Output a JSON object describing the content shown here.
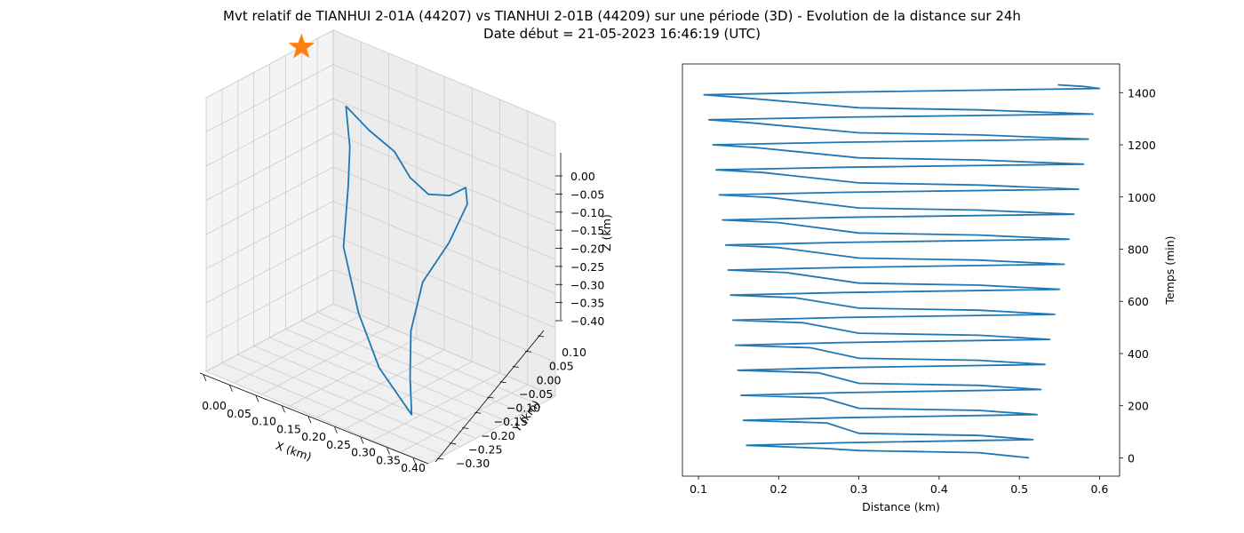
{
  "title": "Mvt relatif de TIANHUI 2-01A (44207) vs TIANHUI 2-01B (44209) sur une période (3D) - Evolution de la distance sur 24h",
  "subtitle": "Date début = 21-05-2023 16:46:19 (UTC)",
  "colors": {
    "series": "#1f77b4",
    "marker": "#ff7f0e",
    "pane": "#f2f2f2",
    "grid": "#cccccc"
  },
  "chart_data": [
    {
      "type": "line3d",
      "xlabel": "X (km)",
      "ylabel": "Y (km)",
      "zlabel": "Z (km)",
      "x_ticks": [
        "0.00",
        "0.05",
        "0.10",
        "0.15",
        "0.20",
        "0.25",
        "0.30",
        "0.35",
        "0.40"
      ],
      "y_ticks": [
        "−0.30",
        "−0.25",
        "−0.20",
        "−0.15",
        "−0.10",
        "−0.05",
        "0.00",
        "0.05",
        "0.10"
      ],
      "z_ticks": [
        "0.00",
        "−0.05",
        "−0.10",
        "−0.15",
        "−0.20",
        "−0.25",
        "−0.30",
        "−0.35",
        "−0.40"
      ],
      "xlim": [
        0.0,
        0.4
      ],
      "ylim": [
        -0.3,
        0.1
      ],
      "zlim": [
        -0.4,
        0.0
      ],
      "grid": true,
      "marker": {
        "shape": "star",
        "x": 0.0,
        "y": 0.0,
        "z": 0.0
      },
      "series_path": [
        [
          0.04,
          0.07,
          -0.09
        ],
        [
          0.07,
          0.09,
          -0.12
        ],
        [
          0.11,
          0.1,
          -0.14
        ],
        [
          0.15,
          0.08,
          -0.16
        ],
        [
          0.2,
          0.05,
          -0.16
        ],
        [
          0.25,
          0.03,
          -0.14
        ],
        [
          0.29,
          0.01,
          -0.11
        ],
        [
          0.31,
          -0.02,
          -0.12
        ],
        [
          0.3,
          -0.06,
          -0.17
        ],
        [
          0.27,
          -0.09,
          -0.23
        ],
        [
          0.26,
          -0.11,
          -0.3
        ],
        [
          0.27,
          -0.13,
          -0.36
        ],
        [
          0.29,
          -0.16,
          -0.4
        ],
        [
          0.22,
          -0.14,
          -0.36
        ],
        [
          0.16,
          -0.1,
          -0.31
        ],
        [
          0.11,
          -0.06,
          -0.24
        ],
        [
          0.09,
          -0.01,
          -0.17
        ],
        [
          0.07,
          0.03,
          -0.13
        ],
        [
          0.04,
          0.07,
          -0.09
        ]
      ]
    },
    {
      "type": "line",
      "xlabel": "Distance (km)",
      "ylabel": "Temps (min)",
      "xlim": [
        0.08,
        0.625
      ],
      "ylim": [
        -70,
        1510
      ],
      "x_ticks": [
        0.1,
        0.2,
        0.3,
        0.4,
        0.5,
        0.6
      ],
      "y_ticks": [
        0,
        200,
        400,
        600,
        800,
        1000,
        1200,
        1400
      ],
      "grid": false,
      "series": [
        {
          "points": [
            [
              0.512,
              0
            ],
            [
              0.45,
              20
            ],
            [
              0.3,
              28
            ],
            [
              0.26,
              36
            ],
            [
              0.16,
              48
            ],
            [
              0.28,
              58
            ],
            [
              0.517,
              70
            ],
            [
              0.45,
              86
            ],
            [
              0.3,
              94
            ],
            [
              0.26,
              134
            ],
            [
              0.156,
              144
            ],
            [
              0.28,
              154
            ],
            [
              0.522,
              166
            ],
            [
              0.45,
              182
            ],
            [
              0.3,
              190
            ],
            [
              0.255,
              230
            ],
            [
              0.153,
              240
            ],
            [
              0.28,
              250
            ],
            [
              0.527,
              262
            ],
            [
              0.45,
              278
            ],
            [
              0.3,
              286
            ],
            [
              0.25,
              326
            ],
            [
              0.149,
              336
            ],
            [
              0.28,
              346
            ],
            [
              0.532,
              358
            ],
            [
              0.45,
              374
            ],
            [
              0.3,
              382
            ],
            [
              0.24,
              422
            ],
            [
              0.146,
              432
            ],
            [
              0.28,
              442
            ],
            [
              0.538,
              454
            ],
            [
              0.45,
              470
            ],
            [
              0.3,
              478
            ],
            [
              0.23,
              518
            ],
            [
              0.143,
              528
            ],
            [
              0.28,
              538
            ],
            [
              0.544,
              550
            ],
            [
              0.45,
              566
            ],
            [
              0.3,
              574
            ],
            [
              0.22,
              614
            ],
            [
              0.14,
              624
            ],
            [
              0.28,
              634
            ],
            [
              0.55,
              646
            ],
            [
              0.45,
              662
            ],
            [
              0.3,
              670
            ],
            [
              0.21,
              710
            ],
            [
              0.137,
              720
            ],
            [
              0.28,
              730
            ],
            [
              0.556,
              742
            ],
            [
              0.45,
              758
            ],
            [
              0.3,
              766
            ],
            [
              0.2,
              806
            ],
            [
              0.134,
              816
            ],
            [
              0.28,
              826
            ],
            [
              0.562,
              838
            ],
            [
              0.45,
              854
            ],
            [
              0.3,
              862
            ],
            [
              0.2,
              902
            ],
            [
              0.13,
              912
            ],
            [
              0.28,
              922
            ],
            [
              0.568,
              934
            ],
            [
              0.45,
              950
            ],
            [
              0.3,
              958
            ],
            [
              0.19,
              998
            ],
            [
              0.126,
              1008
            ],
            [
              0.28,
              1018
            ],
            [
              0.574,
              1030
            ],
            [
              0.45,
              1046
            ],
            [
              0.3,
              1054
            ],
            [
              0.18,
              1094
            ],
            [
              0.122,
              1104
            ],
            [
              0.28,
              1114
            ],
            [
              0.58,
              1126
            ],
            [
              0.45,
              1142
            ],
            [
              0.3,
              1150
            ],
            [
              0.17,
              1190
            ],
            [
              0.118,
              1200
            ],
            [
              0.28,
              1210
            ],
            [
              0.586,
              1222
            ],
            [
              0.45,
              1238
            ],
            [
              0.3,
              1246
            ],
            [
              0.16,
              1286
            ],
            [
              0.113,
              1296
            ],
            [
              0.28,
              1306
            ],
            [
              0.592,
              1318
            ],
            [
              0.45,
              1334
            ],
            [
              0.3,
              1342
            ],
            [
              0.15,
              1382
            ],
            [
              0.107,
              1392
            ],
            [
              0.28,
              1402
            ],
            [
              0.6,
              1416
            ],
            [
              0.58,
              1424
            ],
            [
              0.548,
              1430
            ]
          ]
        }
      ]
    }
  ]
}
